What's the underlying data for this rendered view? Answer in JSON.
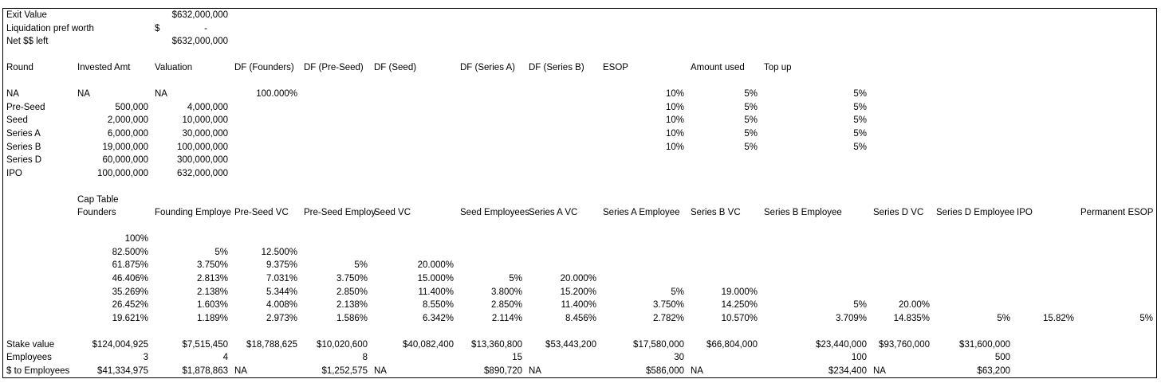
{
  "sheet": {
    "rows": [
      [
        "Exit Value",
        null,
        "$632,000,000"
      ],
      [
        "Liquidation pref worth",
        null,
        [
          "$",
          "-"
        ]
      ],
      [
        "Net $$ left",
        null,
        "$632,000,000"
      ],
      null,
      [
        "Round",
        "Invested Amt",
        "Valuation",
        "DF (Founders)",
        "DF (Pre-Seed)",
        "DF (Seed)",
        "DF (Series A)",
        "DF (Series B)",
        "ESOP",
        "Amount used",
        "Top up"
      ],
      null,
      [
        "NA",
        "NA",
        "NA",
        "100.000%",
        null,
        null,
        null,
        null,
        "10%",
        "5%",
        "5%"
      ],
      [
        "Pre-Seed",
        "500,000",
        "4,000,000",
        null,
        null,
        null,
        null,
        null,
        "10%",
        "5%",
        "5%"
      ],
      [
        "Seed",
        "2,000,000",
        "10,000,000",
        null,
        null,
        null,
        null,
        null,
        "10%",
        "5%",
        "5%"
      ],
      [
        "Series A",
        "6,000,000",
        "30,000,000",
        null,
        null,
        null,
        null,
        null,
        "10%",
        "5%",
        "5%"
      ],
      [
        "Series B",
        "19,000,000",
        "100,000,000",
        null,
        null,
        null,
        null,
        null,
        "10%",
        "5%",
        "5%"
      ],
      [
        "Series D",
        "60,000,000",
        "300,000,000"
      ],
      [
        "IPO",
        "100,000,000",
        "632,000,000"
      ],
      null,
      [
        null,
        "Cap Table"
      ],
      [
        null,
        "Founders",
        "Founding Employe",
        "Pre-Seed VC",
        "Pre-Seed Employ",
        "Seed VC",
        "Seed Employees",
        "Series A VC",
        "Series A Employee",
        "Series B VC",
        "Series B Employee",
        "Series D VC",
        "Series D Employee",
        "IPO",
        "Permanent ESOP"
      ],
      null,
      [
        null,
        "100%"
      ],
      [
        null,
        "82.500%",
        "5%",
        "12.500%"
      ],
      [
        null,
        "61.875%",
        "3.750%",
        "9.375%",
        "5%",
        "20.000%"
      ],
      [
        null,
        "46.406%",
        "2.813%",
        "7.031%",
        "3.750%",
        "15.000%",
        "5%",
        "20.000%"
      ],
      [
        null,
        "35.269%",
        "2.138%",
        "5.344%",
        "2.850%",
        "11.400%",
        "3.800%",
        "15.200%",
        "5%",
        "19.000%"
      ],
      [
        null,
        "26.452%",
        "1.603%",
        "4.008%",
        "2.138%",
        "8.550%",
        "2.850%",
        "11.400%",
        "3.750%",
        "14.250%",
        "5%",
        "20.00%"
      ],
      [
        null,
        "19.621%",
        "1.189%",
        "2.973%",
        "1.586%",
        "6.342%",
        "2.114%",
        "8.456%",
        "2.782%",
        "10.570%",
        "3.709%",
        "14.835%",
        "5%",
        "15.82%",
        "5%"
      ],
      null,
      [
        "Stake value",
        "$124,004,925",
        "$7,515,450",
        "$18,788,625",
        "$10,020,600",
        "$40,082,400",
        "$13,360,800",
        "$53,443,200",
        "$17,580,000",
        "$66,804,000",
        "$23,440,000",
        "$93,760,000",
        "$31,600,000"
      ],
      [
        "Employees",
        "3",
        "4",
        null,
        "8",
        null,
        "15",
        null,
        "30",
        null,
        "100",
        null,
        "500"
      ],
      [
        "$ to Employees",
        "$41,334,975",
        "$1,878,863",
        "NA",
        "$1,252,575",
        "NA",
        "$890,720",
        "NA",
        "$586,000",
        "NA",
        "$234,400",
        "NA",
        "$63,200"
      ]
    ]
  }
}
